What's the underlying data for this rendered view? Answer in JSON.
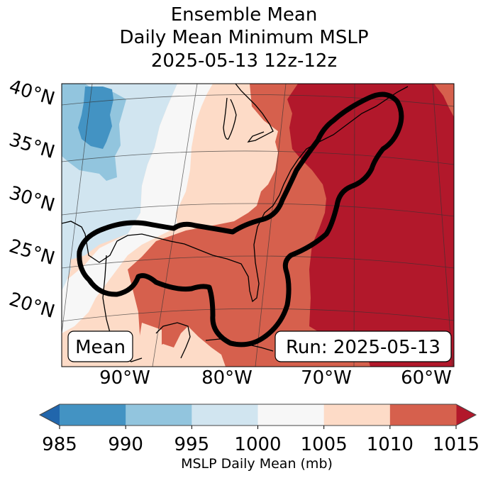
{
  "chart_data": {
    "type": "heatmap",
    "title_lines": [
      "Ensemble Mean",
      "Daily Mean Minimum MSLP",
      "2025-05-13 12z-12z"
    ],
    "map": {
      "projection": "conic",
      "lat_ticks": [
        "40°N",
        "35°N",
        "30°N",
        "25°N",
        "20°N"
      ],
      "lon_ticks": [
        "90°W",
        "80°W",
        "70°W",
        "60°W"
      ],
      "lat_range": [
        17,
        41
      ],
      "lon_range": [
        -96,
        -59
      ],
      "grid": true
    },
    "fields": {
      "description": "Daily mean MSLP (mb), low west (Great Plains) to high east (Atlantic)",
      "regions": [
        {
          "name": "central-plains-low",
          "bin": "985-990"
        },
        {
          "name": "plains",
          "bin": "990-995"
        },
        {
          "name": "western-gulf-plains",
          "bin": "995-1000"
        },
        {
          "name": "texas-mississippi-valley",
          "bin": "1000-1005"
        },
        {
          "name": "midwest-gulf",
          "bin": "1005-1010"
        },
        {
          "name": "southeast-florida-caribbean",
          "bin": "1010-1015"
        },
        {
          "name": "atlantic-northeast",
          "bin": ">1015"
        }
      ]
    },
    "contour": {
      "description": "Bold black outline enclosing Gulf of Mexico and US East Coast"
    },
    "annotations": {
      "left": "Mean",
      "right": "Run: 2025-05-13"
    },
    "colorbar": {
      "label": "MSLP Daily Mean (mb)",
      "ticks": [
        985,
        990,
        995,
        1000,
        1005,
        1010,
        1015
      ],
      "colors": [
        "#4393c3",
        "#92c5de",
        "#d1e5f0",
        "#f7f7f7",
        "#fddbc7",
        "#d6604d"
      ],
      "under_color": "#2166ac",
      "over_color": "#b2182b",
      "extend": "both"
    }
  }
}
